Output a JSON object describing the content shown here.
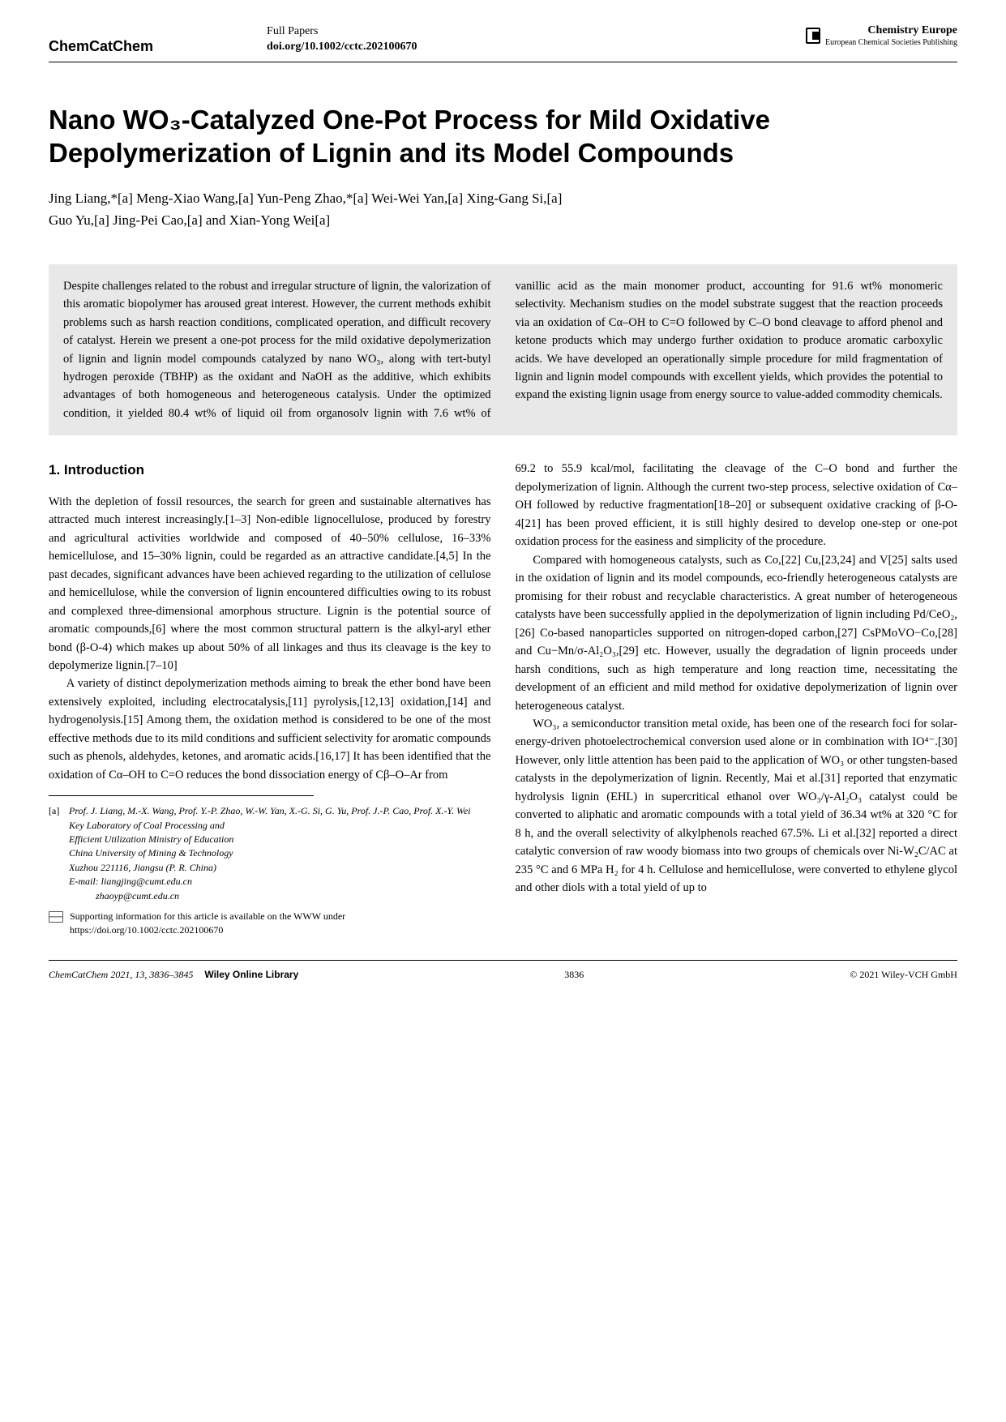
{
  "header": {
    "journal": "ChemCatChem",
    "paper_type": "Full Papers",
    "doi": "doi.org/10.1002/cctc.202100670",
    "publisher_title": "Chemistry Europe",
    "publisher_sub": "European Chemical Societies Publishing"
  },
  "title": "Nano WO₃-Catalyzed One-Pot Process for Mild Oxidative Depolymerization of Lignin and its Model Compounds",
  "authors_line1": "Jing Liang,*[a] Meng-Xiao Wang,[a] Yun-Peng Zhao,*[a] Wei-Wei Yan,[a] Xing-Gang Si,[a]",
  "authors_line2": "Guo Yu,[a] Jing-Pei Cao,[a] and Xian-Yong Wei[a]",
  "abstract": "Despite challenges related to the robust and irregular structure of lignin, the valorization of this aromatic biopolymer has aroused great interest. However, the current methods exhibit problems such as harsh reaction conditions, complicated operation, and difficult recovery of catalyst. Herein we present a one-pot process for the mild oxidative depolymerization of lignin and lignin model compounds catalyzed by nano WO₃, along with tert-butyl hydrogen peroxide (TBHP) as the oxidant and NaOH as the additive, which exhibits advantages of both homogeneous and heterogeneous catalysis. Under the optimized condition, it yielded 80.4 wt% of liquid oil from organosolv lignin with 7.6 wt% of vanillic acid as the main monomer product, accounting for 91.6 wt% monomeric selectivity. Mechanism studies on the model substrate suggest that the reaction proceeds via an oxidation of Cα–OH to C=O followed by C–O bond cleavage to afford phenol and ketone products which may undergo further oxidation to produce aromatic carboxylic acids. We have developed an operationally simple procedure for mild fragmentation of lignin and lignin model compounds with excellent yields, which provides the potential to expand the existing lignin usage from energy source to value-added commodity chemicals.",
  "section1_heading": "1. Introduction",
  "body_p1": "With the depletion of fossil resources, the search for green and sustainable alternatives has attracted much interest increasingly.[1–3] Non-edible lignocellulose, produced by forestry and agricultural activities worldwide and composed of 40–50% cellulose, 16–33% hemicellulose, and 15–30% lignin, could be regarded as an attractive candidate.[4,5] In the past decades, significant advances have been achieved regarding to the utilization of cellulose and hemicellulose, while the conversion of lignin encountered difficulties owing to its robust and complexed three-dimensional amorphous structure. Lignin is the potential source of aromatic compounds,[6] where the most common structural pattern is the alkyl-aryl ether bond (β-O-4) which makes up about 50% of all linkages and thus its cleavage is the key to depolymerize lignin.[7–10]",
  "body_p2": "A variety of distinct depolymerization methods aiming to break the ether bond have been extensively exploited, including electrocatalysis,[11] pyrolysis,[12,13] oxidation,[14] and hydrogenolysis.[15] Among them, the oxidation method is considered to be one of the most effective methods due to its mild conditions and sufficient selectivity for aromatic compounds such as phenols, aldehydes, ketones, and aromatic acids.[16,17] It has been identified that the oxidation of Cα–OH to C=O reduces the bond dissociation energy of Cβ–O–Ar from",
  "body_p3": "69.2 to 55.9 kcal/mol, facilitating the cleavage of the C–O bond and further the depolymerization of lignin. Although the current two-step process, selective oxidation of Cα–OH followed by reductive fragmentation[18–20] or subsequent oxidative cracking of β-O-4[21] has been proved efficient, it is still highly desired to develop one-step or one-pot oxidation process for the easiness and simplicity of the procedure.",
  "body_p4": "Compared with homogeneous catalysts, such as Co,[22] Cu,[23,24] and V[25] salts used in the oxidation of lignin and its model compounds, eco-friendly heterogeneous catalysts are promising for their robust and recyclable characteristics. A great number of heterogeneous catalysts have been successfully applied in the depolymerization of lignin including Pd/CeO₂,[26] Co-based nanoparticles supported on nitrogen-doped carbon,[27] CsPMoVO−Co,[28] and Cu−Mn/σ-Al₂O₃,[29] etc. However, usually the degradation of lignin proceeds under harsh conditions, such as high temperature and long reaction time, necessitating the development of an efficient and mild method for oxidative depolymerization of lignin over heterogeneous catalyst.",
  "body_p5": "WO₃, a semiconductor transition metal oxide, has been one of the research foci for solar-energy-driven photoelectrochemical conversion used alone or in combination with IO⁴⁻.[30] However, only little attention has been paid to the application of WO₃ or other tungsten-based catalysts in the depolymerization of lignin. Recently, Mai et al.[31] reported that enzymatic hydrolysis lignin (EHL) in supercritical ethanol over WO₃/γ-Al₂O₃ catalyst could be converted to aliphatic and aromatic compounds with a total yield of 36.34 wt% at 320 °C for 8 h, and the overall selectivity of alkylphenols reached 67.5%. Li et al.[32] reported a direct catalytic conversion of raw woody biomass into two groups of chemicals over Ni-W₂C/AC at 235 °C and 6 MPa H₂ for 4 h. Cellulose and hemicellulose, were converted to ethylene glycol and other diols with a total yield of up to",
  "affiliation": {
    "label": "[a]",
    "names": "Prof. J. Liang, M.-X. Wang, Prof. Y.-P. Zhao, W.-W. Yan, X.-G. Si, G. Yu, Prof. J.-P. Cao, Prof. X.-Y. Wei",
    "line1": "Key Laboratory of Coal Processing and",
    "line2": "Efficient Utilization Ministry of Education",
    "line3": "China University of Mining & Technology",
    "line4": "Xuzhou 221116, Jiangsu (P. R. China)",
    "email1": "E-mail: liangjing@cumt.edu.cn",
    "email2": "zhaoyp@cumt.edu.cn"
  },
  "supporting_info": "Supporting information for this article is available on the WWW under https://doi.org/10.1002/cctc.202100670",
  "footer": {
    "cite": "ChemCatChem 2021, 13, 3836–3845",
    "wol": "Wiley Online Library",
    "page": "3836",
    "copyright": "© 2021 Wiley-VCH GmbH"
  }
}
